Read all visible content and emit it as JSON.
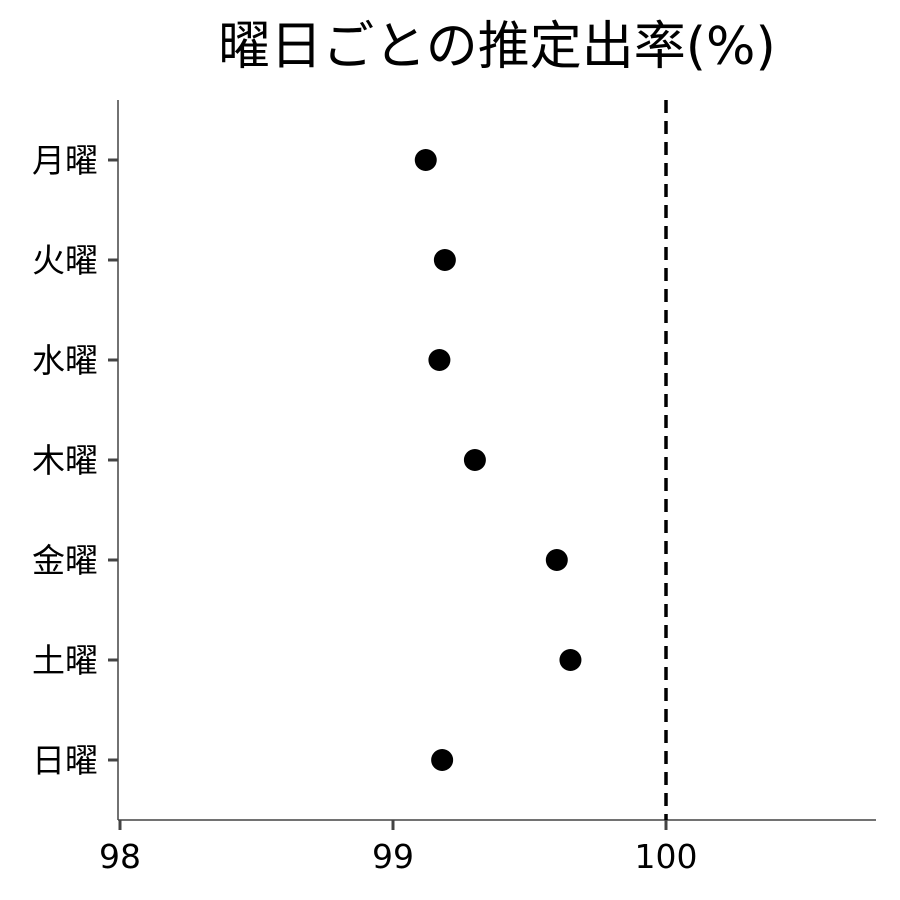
{
  "chart_data": {
    "type": "scatter",
    "title": "曜日ごとの推定出率(%)",
    "xlabel": "",
    "ylabel": "",
    "xlim": [
      98,
      100.8
    ],
    "xticks": [
      98,
      99,
      100
    ],
    "categories": [
      "月曜",
      "火曜",
      "水曜",
      "木曜",
      "金曜",
      "土曜",
      "日曜"
    ],
    "values": [
      99.12,
      99.19,
      99.17,
      99.3,
      99.6,
      99.65,
      99.18
    ],
    "reference_line": {
      "x": 100,
      "style": "dashed"
    },
    "grid": false,
    "legend": "none",
    "colors": {
      "point": "#000000",
      "axis": "#444444",
      "reference": "#000000"
    }
  }
}
